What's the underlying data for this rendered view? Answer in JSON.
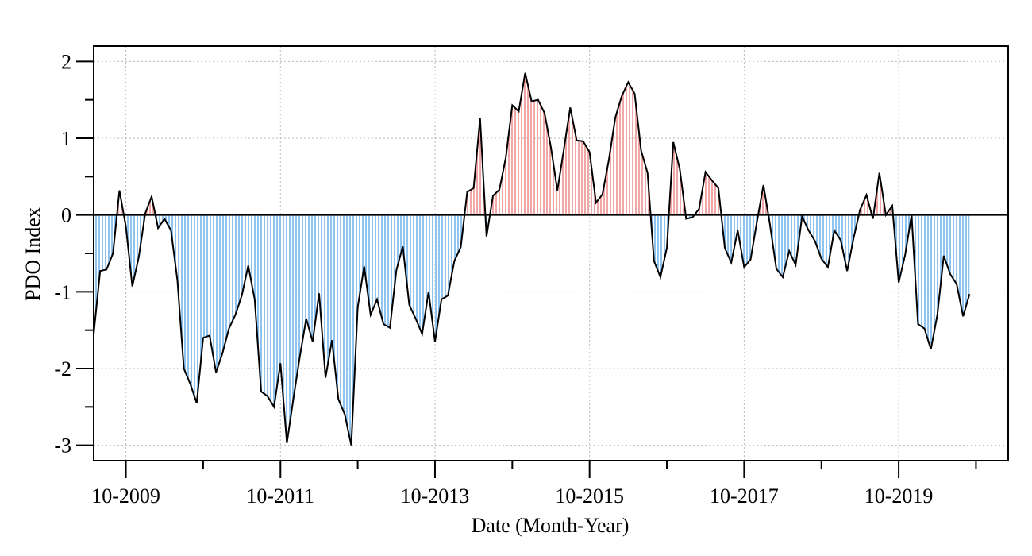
{
  "chart_data": {
    "type": "area-line",
    "x_label": "Date (Month-Year)",
    "y_label": "PDO Index",
    "x": [
      "2009-05",
      "2009-06",
      "2009-07",
      "2009-08",
      "2009-09",
      "2009-10",
      "2009-11",
      "2009-12",
      "2010-01",
      "2010-02",
      "2010-03",
      "2010-04",
      "2010-05",
      "2010-06",
      "2010-07",
      "2010-08",
      "2010-09",
      "2010-10",
      "2010-11",
      "2010-12",
      "2011-01",
      "2011-02",
      "2011-03",
      "2011-04",
      "2011-05",
      "2011-06",
      "2011-07",
      "2011-08",
      "2011-09",
      "2011-10",
      "2011-11",
      "2011-12",
      "2012-01",
      "2012-02",
      "2012-03",
      "2012-04",
      "2012-05",
      "2012-06",
      "2012-07",
      "2012-08",
      "2012-09",
      "2012-10",
      "2012-11",
      "2012-12",
      "2013-01",
      "2013-02",
      "2013-03",
      "2013-04",
      "2013-05",
      "2013-06",
      "2013-07",
      "2013-08",
      "2013-09",
      "2013-10",
      "2013-11",
      "2013-12",
      "2014-01",
      "2014-02",
      "2014-03",
      "2014-04",
      "2014-05",
      "2014-06",
      "2014-07",
      "2014-08",
      "2014-09",
      "2014-10",
      "2014-11",
      "2014-12",
      "2015-01",
      "2015-02",
      "2015-03",
      "2015-04",
      "2015-05",
      "2015-06",
      "2015-07",
      "2015-08",
      "2015-09",
      "2015-10",
      "2015-11",
      "2015-12",
      "2016-01",
      "2016-02",
      "2016-03",
      "2016-04",
      "2016-05",
      "2016-06",
      "2016-07",
      "2016-08",
      "2016-09",
      "2016-10",
      "2016-11",
      "2016-12",
      "2017-01",
      "2017-02",
      "2017-03",
      "2017-04",
      "2017-05",
      "2017-06",
      "2017-07",
      "2017-08",
      "2017-09",
      "2017-10",
      "2017-11",
      "2017-12",
      "2018-01",
      "2018-02",
      "2018-03",
      "2018-04",
      "2018-05",
      "2018-06",
      "2018-07",
      "2018-08",
      "2018-09",
      "2018-10",
      "2018-11",
      "2018-12",
      "2019-01",
      "2019-02",
      "2019-03",
      "2019-04",
      "2019-05",
      "2019-06",
      "2019-07",
      "2019-08",
      "2019-09",
      "2019-10",
      "2019-11",
      "2019-12",
      "2020-01",
      "2020-02",
      "2020-03",
      "2020-04",
      "2020-05",
      "2020-06",
      "2020-07",
      "2020-08",
      "2020-09"
    ],
    "values": [
      -1.55,
      -0.73,
      -0.71,
      -0.5,
      0.32,
      -0.15,
      -0.93,
      -0.55,
      0.02,
      0.24,
      -0.17,
      -0.05,
      -0.2,
      -0.85,
      -2.0,
      -2.2,
      -2.45,
      -1.6,
      -1.57,
      -2.05,
      -1.8,
      -1.48,
      -1.3,
      -1.05,
      -0.66,
      -1.1,
      -2.3,
      -2.36,
      -2.5,
      -1.93,
      -2.97,
      -2.4,
      -1.85,
      -1.35,
      -1.65,
      -1.02,
      -2.12,
      -1.63,
      -2.4,
      -2.6,
      -3.0,
      -1.2,
      -0.67,
      -1.3,
      -1.1,
      -1.42,
      -1.47,
      -0.72,
      -0.41,
      -1.17,
      -1.35,
      -1.55,
      -1.0,
      -1.65,
      -1.1,
      -1.05,
      -0.6,
      -0.42,
      0.3,
      0.35,
      1.26,
      -0.28,
      0.25,
      0.33,
      0.75,
      1.43,
      1.35,
      1.85,
      1.48,
      1.5,
      1.33,
      0.88,
      0.32,
      0.85,
      1.4,
      0.97,
      0.96,
      0.82,
      0.16,
      0.27,
      0.72,
      1.27,
      1.55,
      1.73,
      1.58,
      0.84,
      0.55,
      -0.6,
      -0.81,
      -0.43,
      0.95,
      0.6,
      -0.05,
      -0.03,
      0.08,
      0.56,
      0.45,
      0.35,
      -0.43,
      -0.62,
      -0.2,
      -0.68,
      -0.58,
      -0.08,
      0.39,
      -0.12,
      -0.7,
      -0.81,
      -0.47,
      -0.65,
      -0.02,
      -0.2,
      -0.34,
      -0.57,
      -0.68,
      -0.2,
      -0.33,
      -0.73,
      -0.3,
      0.07,
      0.26,
      -0.05,
      0.55,
      0.0,
      0.12,
      -0.88,
      -0.52,
      0.0,
      -1.42,
      -1.48,
      -1.75,
      -1.3,
      -0.53,
      -0.77,
      -0.9,
      -1.32,
      -1.03
    ],
    "line_color": "#000000",
    "positive_color": "#f2a7a7",
    "negative_color": "#8fc3f0",
    "xlim": [
      "2009-05",
      "2021-03"
    ],
    "xticks": [
      {
        "value": "2009-10",
        "label": "10-2009"
      },
      {
        "value": "2011-10",
        "label": "10-2011"
      },
      {
        "value": "2013-10",
        "label": "10-2013"
      },
      {
        "value": "2015-10",
        "label": "10-2015"
      },
      {
        "value": "2017-10",
        "label": "10-2017"
      },
      {
        "value": "2019-10",
        "label": "10-2019"
      }
    ],
    "xminor": [
      "2010-10",
      "2012-10",
      "2014-10",
      "2016-10",
      "2018-10",
      "2020-10"
    ],
    "ylim": [
      -3.2,
      2.2
    ],
    "yticks": [
      -3,
      -2,
      -1,
      0,
      1,
      2
    ],
    "yminor": [
      -2.5,
      -1.5,
      -0.5,
      0.5,
      1.5
    ],
    "grid": true,
    "zero_line": true
  }
}
